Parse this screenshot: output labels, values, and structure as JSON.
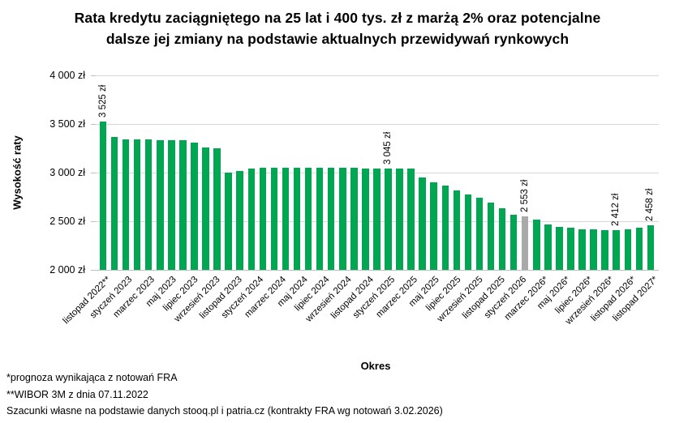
{
  "chart_data": {
    "type": "bar",
    "title": "Rata kredytu zaciągniętego na 25 lat i 400 tys. zł z marżą 2% oraz potencjalne\ndalsze jej zmiany na podstawie aktualnych przewidywań rynkowych",
    "xlabel": "Okres",
    "ylabel": "Wysokość raty",
    "ylim": [
      2000,
      4000
    ],
    "grid": "horizontal",
    "legend": "none",
    "ytick_labels": [
      "4 000 zł",
      "3 500 zł",
      "3 000 zł",
      "2 500 zł",
      "2 000 zł"
    ],
    "x_tick_labels": [
      "listopad 2022**",
      "styczeń 2023",
      "marzec 2023",
      "maj 2023",
      "lipiec 2023",
      "wrzesień 2023",
      "listopad 2023",
      "styczeń 2024",
      "marzec 2024",
      "maj 2024",
      "lipiec 2024",
      "wrzesień 2024",
      "listopad 2024",
      "styczeń 2025",
      "marzec 2025",
      "maj 2025",
      "lipiec 2025",
      "wrzesień 2025",
      "listopad 2025",
      "styczeń 2026",
      "marzec 2026*",
      "maj 2026*",
      "lipiec 2026*",
      "wrzesień 2026*",
      "listopad 2026*",
      "listopad 2027*"
    ],
    "values": [
      3525,
      3370,
      3345,
      3345,
      3345,
      3335,
      3335,
      3335,
      3310,
      3260,
      3250,
      3000,
      3020,
      3045,
      3050,
      3050,
      3050,
      3050,
      3050,
      3050,
      3050,
      3050,
      3050,
      3045,
      3045,
      3045,
      3045,
      3045,
      2950,
      2900,
      2870,
      2815,
      2775,
      2745,
      2690,
      2630,
      2570,
      2553,
      2520,
      2470,
      2445,
      2430,
      2420,
      2415,
      2412,
      2412,
      2415,
      2430,
      2458
    ],
    "highlight_index": 37,
    "annotations": [
      {
        "index": 0,
        "text": "3 525 zł"
      },
      {
        "index": 25,
        "text": "3 045 zł"
      },
      {
        "index": 37,
        "text": "2 553 zł"
      },
      {
        "index": 45,
        "text": "2 412 zł"
      },
      {
        "index": 48,
        "text": "2 458 zł"
      }
    ],
    "colors": {
      "bar": "#00A651",
      "highlight_bar": "#A9A9A9",
      "gridline": "#D9D9D9"
    }
  },
  "footnotes": [
    "*prognoza wynikająca z notowań FRA",
    "**WIBOR 3M z dnia 07.11.2022",
    "Szacunki własne na podstawie danych stooq.pl i patria.cz (kontrakty FRA wg notowań 3.02.2026)"
  ]
}
